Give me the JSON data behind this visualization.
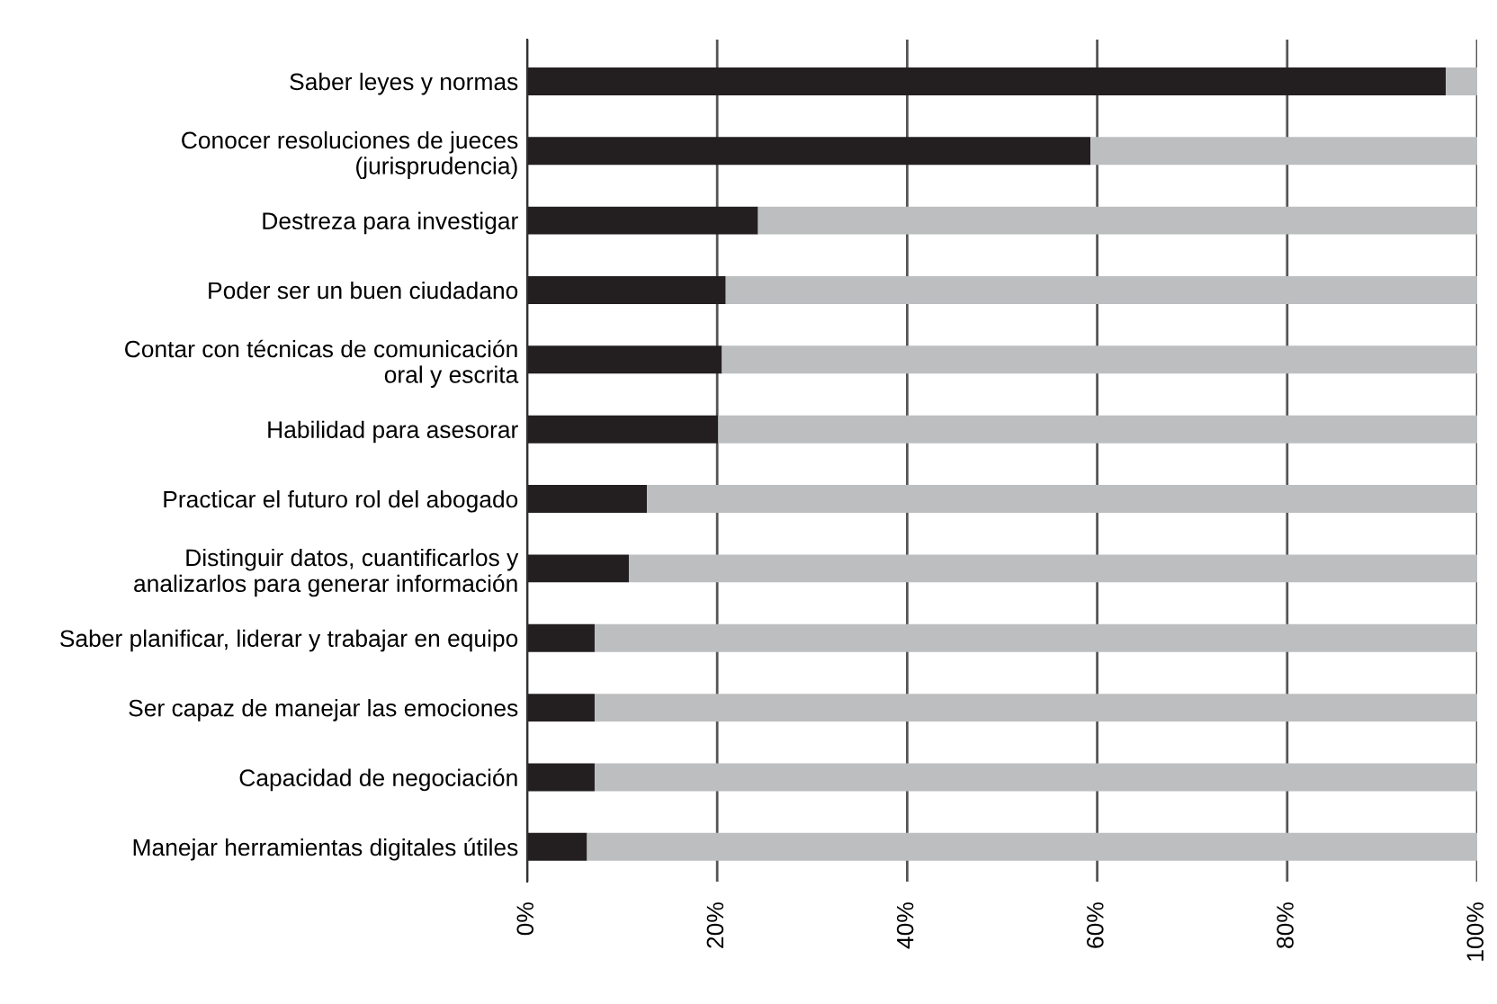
{
  "chart_data": {
    "type": "bar",
    "orientation": "horizontal",
    "stacked": true,
    "categories": [
      "Saber leyes y normas",
      "Conocer resoluciones de jueces\n(jurisprudencia)",
      "Destreza para investigar",
      "Poder ser un buen ciudadano",
      "Contar con técnicas de comunicación\noral y escrita",
      "Habilidad para asesorar",
      "Practicar el futuro rol del abogado",
      "Distinguir datos, cuantificarlos y\nanalizarlos para generar información",
      "Saber planificar, liderar y trabajar en equipo",
      "Ser capaz de manejar las emociones",
      "Capacidad de negociación",
      "Manejar herramientas digitales útiles"
    ],
    "series": [
      {
        "color": "#231f20",
        "values": [
          96.7,
          59.3,
          24.3,
          20.9,
          20.5,
          20.1,
          12.6,
          10.7,
          7.1,
          7.1,
          7.1,
          6.3
        ]
      },
      {
        "color": "#bcbec0",
        "values": [
          3.3,
          40.7,
          75.7,
          79.1,
          79.5,
          79.9,
          87.4,
          89.3,
          92.9,
          92.9,
          92.9,
          93.7
        ]
      }
    ],
    "xlim": [
      0,
      100
    ],
    "xticks": [
      {
        "value": 0,
        "label": "0%"
      },
      {
        "value": 20,
        "label": "20%"
      },
      {
        "value": 40,
        "label": "40%"
      },
      {
        "value": 60,
        "label": "60%"
      },
      {
        "value": 80,
        "label": "80%"
      },
      {
        "value": 100,
        "label": "100%"
      }
    ],
    "grid": "x",
    "legend": false
  }
}
